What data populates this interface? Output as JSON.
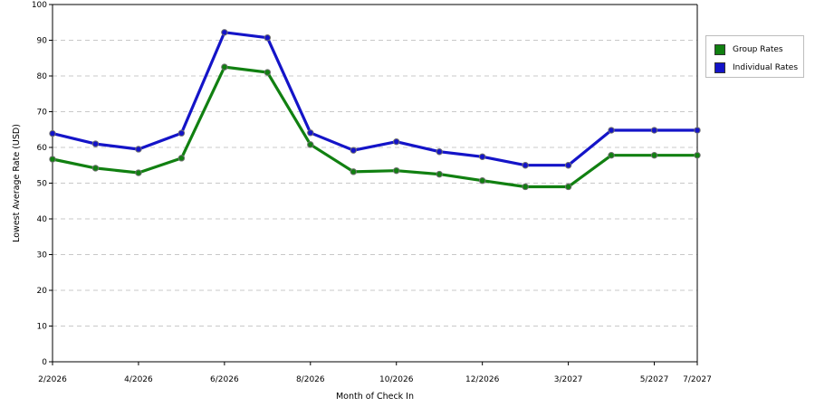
{
  "chart_data": {
    "type": "line",
    "xlabel": "Month of Check In",
    "ylabel": "Lowest Average Rate (USD)",
    "ylim": [
      0,
      100
    ],
    "yticks": [
      0,
      10,
      20,
      30,
      40,
      50,
      60,
      70,
      80,
      90,
      100
    ],
    "x": [
      "2/2026",
      "3/2026",
      "4/2026",
      "5/2026",
      "6/2026",
      "7/2026",
      "8/2026",
      "9/2026",
      "10/2026",
      "11/2026",
      "12/2026",
      "1/2027",
      "3/2027",
      "4/2027",
      "5/2027",
      "7/2027"
    ],
    "x_tick_labels": [
      "2/2026",
      "4/2026",
      "6/2026",
      "8/2026",
      "10/2026",
      "12/2026",
      "3/2027",
      "5/2027",
      "7/2027"
    ],
    "grid": "horizontal dashed",
    "legend_position": "right",
    "series": [
      {
        "name": "Group Rates",
        "color": "#118011",
        "values": [
          56.7,
          54.2,
          52.9,
          57.0,
          82.5,
          81.0,
          60.8,
          53.2,
          53.5,
          52.5,
          50.7,
          49.0,
          49.0,
          57.8,
          57.8,
          57.8
        ]
      },
      {
        "name": "Individual Rates",
        "color": "#1414c8",
        "values": [
          63.9,
          61.0,
          59.5,
          64.0,
          92.2,
          90.7,
          64.1,
          59.2,
          61.6,
          58.8,
          57.4,
          55.0,
          55.0,
          64.8,
          64.8,
          64.8
        ]
      }
    ]
  }
}
